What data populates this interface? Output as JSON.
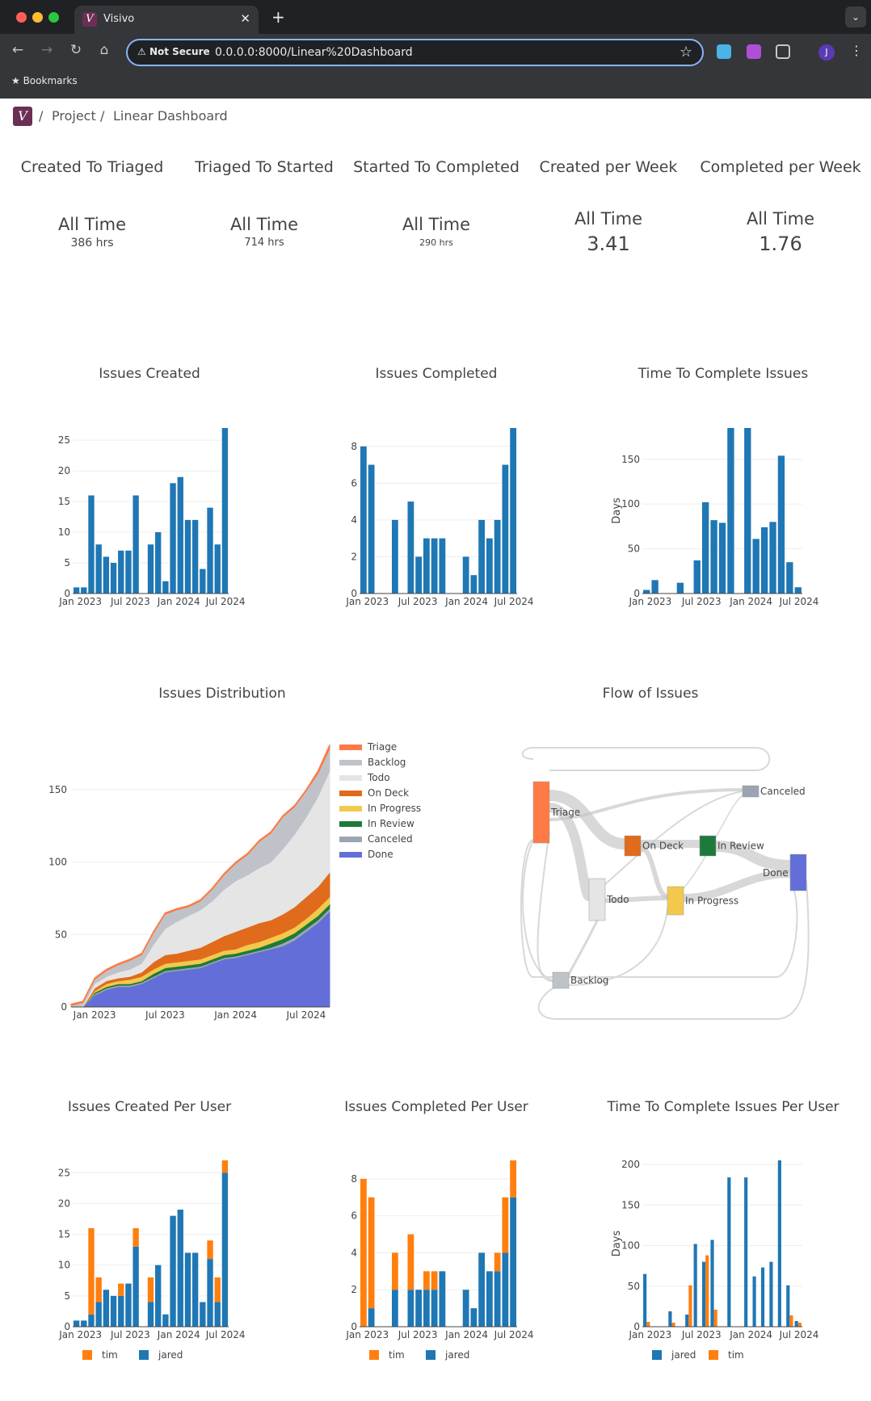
{
  "browser": {
    "tab_title": "Visivo",
    "not_secure": "Not Secure",
    "url": "0.0.0.0:8000/Linear%20Dashboard",
    "bookmarks": "Bookmarks",
    "avatar": "J"
  },
  "breadcrumb": {
    "root": "Project",
    "page": "Linear Dashboard"
  },
  "kpis": [
    {
      "title": "Created To Triaged",
      "label": "All Time",
      "value": "386 hrs"
    },
    {
      "title": "Triaged To Started",
      "label": "All Time",
      "value": "714 hrs"
    },
    {
      "title": "Started To Completed",
      "label": "All Time",
      "value": "290 hrs"
    },
    {
      "title": "Created per Week",
      "label": "All Time",
      "value": "3.41"
    },
    {
      "title": "Completed per Week",
      "label": "All Time",
      "value": "1.76"
    }
  ],
  "colors": {
    "blue": "#1f77b4",
    "orange": "#ff7f0e"
  },
  "chart_data": [
    {
      "id": "created",
      "type": "bar",
      "title": "Issues Created",
      "x_ticks": [
        "Jan 2023",
        "Jul 2023",
        "Jan 2024",
        "Jul 2024"
      ],
      "ylim": [
        0,
        27
      ],
      "y_ticks": [
        0,
        5,
        10,
        15,
        20,
        25
      ],
      "values": [
        1,
        1,
        16,
        8,
        6,
        5,
        7,
        7,
        16,
        0,
        8,
        10,
        2,
        18,
        19,
        12,
        12,
        4,
        14,
        8,
        27
      ]
    },
    {
      "id": "completed",
      "type": "bar",
      "title": "Issues Completed",
      "x_ticks": [
        "Jan 2023",
        "Jul 2023",
        "Jan 2024",
        "Jul 2024"
      ],
      "ylim": [
        0,
        9
      ],
      "y_ticks": [
        0,
        2,
        4,
        6,
        8
      ],
      "values": [
        8,
        7,
        0,
        0,
        4,
        0,
        5,
        2,
        3,
        3,
        3,
        0,
        0,
        2,
        1,
        4,
        3,
        4,
        7,
        9
      ]
    },
    {
      "id": "time",
      "type": "bar",
      "title": "Time To Complete Issues",
      "ylabel": "Days",
      "x_ticks": [
        "Jan 2023",
        "Jul 2023",
        "Jan 2024",
        "Jul 2024"
      ],
      "ylim": [
        0,
        185
      ],
      "y_ticks": [
        0,
        50,
        100,
        150
      ],
      "values": [
        4,
        15,
        0,
        0,
        12,
        0,
        37,
        102,
        82,
        79,
        185,
        0,
        185,
        61,
        74,
        80,
        154,
        35,
        7
      ]
    },
    {
      "id": "dist",
      "type": "area",
      "title": "Issues Distribution",
      "x_ticks": [
        "Jan 2023",
        "Jul 2023",
        "Jan 2024",
        "Jul 2024"
      ],
      "ylim": [
        0,
        185
      ],
      "y_ticks": [
        0,
        50,
        100,
        150
      ],
      "x": [
        "2022-11",
        "2022-12",
        "2023-01",
        "2023-02",
        "2023-03",
        "2023-04",
        "2023-05",
        "2023-06",
        "2023-07",
        "2023-08",
        "2023-09",
        "2023-10",
        "2023-11",
        "2023-12",
        "2024-01",
        "2024-02",
        "2024-03",
        "2024-04",
        "2024-05",
        "2024-06",
        "2024-07",
        "2024-08",
        "2024-09"
      ],
      "legend_position": "top-right",
      "series": [
        {
          "name": "Done",
          "color": "#636ed8",
          "values": [
            0,
            0,
            8,
            12,
            14,
            14,
            16,
            20,
            24,
            25,
            26,
            27,
            30,
            33,
            34,
            36,
            38,
            40,
            42,
            46,
            52,
            58,
            66
          ]
        },
        {
          "name": "Canceled",
          "color": "#9aa5b1",
          "values": [
            0,
            0,
            1,
            1,
            1,
            1,
            1,
            1,
            1,
            1,
            1,
            1,
            1,
            1,
            1,
            1,
            1,
            1,
            2,
            2,
            2,
            2,
            2
          ]
        },
        {
          "name": "In Review",
          "color": "#1e7a3a",
          "values": [
            0,
            0,
            1,
            1,
            1,
            1,
            1,
            2,
            2,
            2,
            2,
            2,
            2,
            2,
            2,
            2,
            2,
            3,
            3,
            3,
            3,
            3,
            3
          ]
        },
        {
          "name": "In Progress",
          "color": "#f2c94c",
          "values": [
            0,
            0,
            1,
            2,
            2,
            3,
            3,
            3,
            3,
            3,
            3,
            3,
            3,
            3,
            3,
            4,
            4,
            4,
            4,
            4,
            4,
            5,
            5
          ]
        },
        {
          "name": "On Deck",
          "color": "#e06b1c",
          "values": [
            0,
            0,
            2,
            2,
            2,
            2,
            3,
            5,
            6,
            6,
            7,
            8,
            9,
            10,
            12,
            12,
            13,
            12,
            13,
            14,
            15,
            15,
            17
          ]
        },
        {
          "name": "Todo",
          "color": "#e5e5e5",
          "values": [
            0,
            1,
            3,
            3,
            4,
            5,
            6,
            12,
            18,
            22,
            24,
            26,
            28,
            32,
            35,
            36,
            38,
            40,
            45,
            50,
            55,
            62,
            70
          ]
        },
        {
          "name": "Backlog",
          "color": "#bfc3c9",
          "values": [
            1,
            2,
            3,
            4,
            5,
            6,
            6,
            8,
            10,
            8,
            6,
            6,
            8,
            10,
            12,
            14,
            18,
            20,
            22,
            19,
            18,
            16,
            15
          ]
        },
        {
          "name": "Triage",
          "color": "#ff7a45",
          "values": [
            1,
            1,
            1,
            1,
            1,
            1,
            1,
            1,
            1,
            1,
            1,
            1,
            1,
            1,
            1,
            1,
            1,
            1,
            1,
            1,
            1,
            2,
            3
          ]
        }
      ]
    },
    {
      "id": "flow",
      "type": "sankey",
      "title": "Flow of Issues",
      "nodes": [
        {
          "name": "Triage",
          "color": "#ff7a45"
        },
        {
          "name": "On Deck",
          "color": "#e06b1c"
        },
        {
          "name": "In Review",
          "color": "#1e7a3a"
        },
        {
          "name": "Canceled",
          "color": "#9aa5b1"
        },
        {
          "name": "Done",
          "color": "#636ed8"
        },
        {
          "name": "Todo",
          "color": "#e5e5e5"
        },
        {
          "name": "In Progress",
          "color": "#f2c94c"
        },
        {
          "name": "Backlog",
          "color": "#bfc3c9"
        }
      ]
    },
    {
      "id": "createdUser",
      "type": "bar",
      "title": "Issues Created Per User",
      "x_ticks": [
        "Jan 2023",
        "Jul 2023",
        "Jan 2024",
        "Jul 2024"
      ],
      "ylim": [
        0,
        27
      ],
      "y_ticks": [
        0,
        5,
        10,
        15,
        20,
        25
      ],
      "series": [
        {
          "name": "jared",
          "color": "#1f77b4",
          "values": [
            1,
            1,
            2,
            4,
            6,
            5,
            5,
            7,
            13,
            0,
            4,
            10,
            2,
            18,
            19,
            12,
            12,
            4,
            11,
            4,
            25
          ]
        },
        {
          "name": "tim",
          "color": "#ff7f0e",
          "values": [
            0,
            0,
            14,
            4,
            0,
            0,
            2,
            0,
            3,
            0,
            4,
            0,
            0,
            0,
            0,
            0,
            0,
            0,
            3,
            4,
            2
          ]
        }
      ],
      "legend": [
        "tim",
        "jared"
      ]
    },
    {
      "id": "completedUser",
      "type": "bar",
      "title": "Issues Completed Per User",
      "x_ticks": [
        "Jan 2023",
        "Jul 2023",
        "Jan 2024",
        "Jul 2024"
      ],
      "ylim": [
        0,
        9
      ],
      "y_ticks": [
        0,
        2,
        4,
        6,
        8
      ],
      "series": [
        {
          "name": "jared",
          "color": "#1f77b4",
          "values": [
            0,
            1,
            0,
            0,
            2,
            0,
            2,
            2,
            2,
            2,
            3,
            0,
            0,
            2,
            1,
            4,
            3,
            3,
            4,
            7
          ]
        },
        {
          "name": "tim",
          "color": "#ff7f0e",
          "values": [
            8,
            6,
            0,
            0,
            2,
            0,
            3,
            0,
            1,
            1,
            0,
            0,
            0,
            0,
            0,
            0,
            0,
            1,
            3,
            2
          ]
        }
      ],
      "legend": [
        "tim",
        "jared"
      ]
    },
    {
      "id": "timeUser",
      "type": "bar",
      "title": "Time To Complete Issues Per User",
      "ylabel": "Days",
      "x_ticks": [
        "Jan 2023",
        "Jul 2023",
        "Jan 2024",
        "Jul 2024"
      ],
      "ylim": [
        0,
        205
      ],
      "y_ticks": [
        0,
        50,
        100,
        150,
        200
      ],
      "mode": "group",
      "series": [
        {
          "name": "jared",
          "color": "#1f77b4",
          "values": [
            65,
            0,
            0,
            19,
            0,
            15,
            102,
            80,
            107,
            0,
            184,
            0,
            184,
            62,
            73,
            80,
            205,
            51,
            7
          ]
        },
        {
          "name": "tim",
          "color": "#ff7f0e",
          "values": [
            6,
            0,
            0,
            5,
            0,
            51,
            0,
            88,
            21,
            0,
            0,
            0,
            0,
            0,
            0,
            0,
            0,
            14,
            5
          ]
        }
      ],
      "legend": [
        "jared",
        "tim"
      ]
    }
  ]
}
